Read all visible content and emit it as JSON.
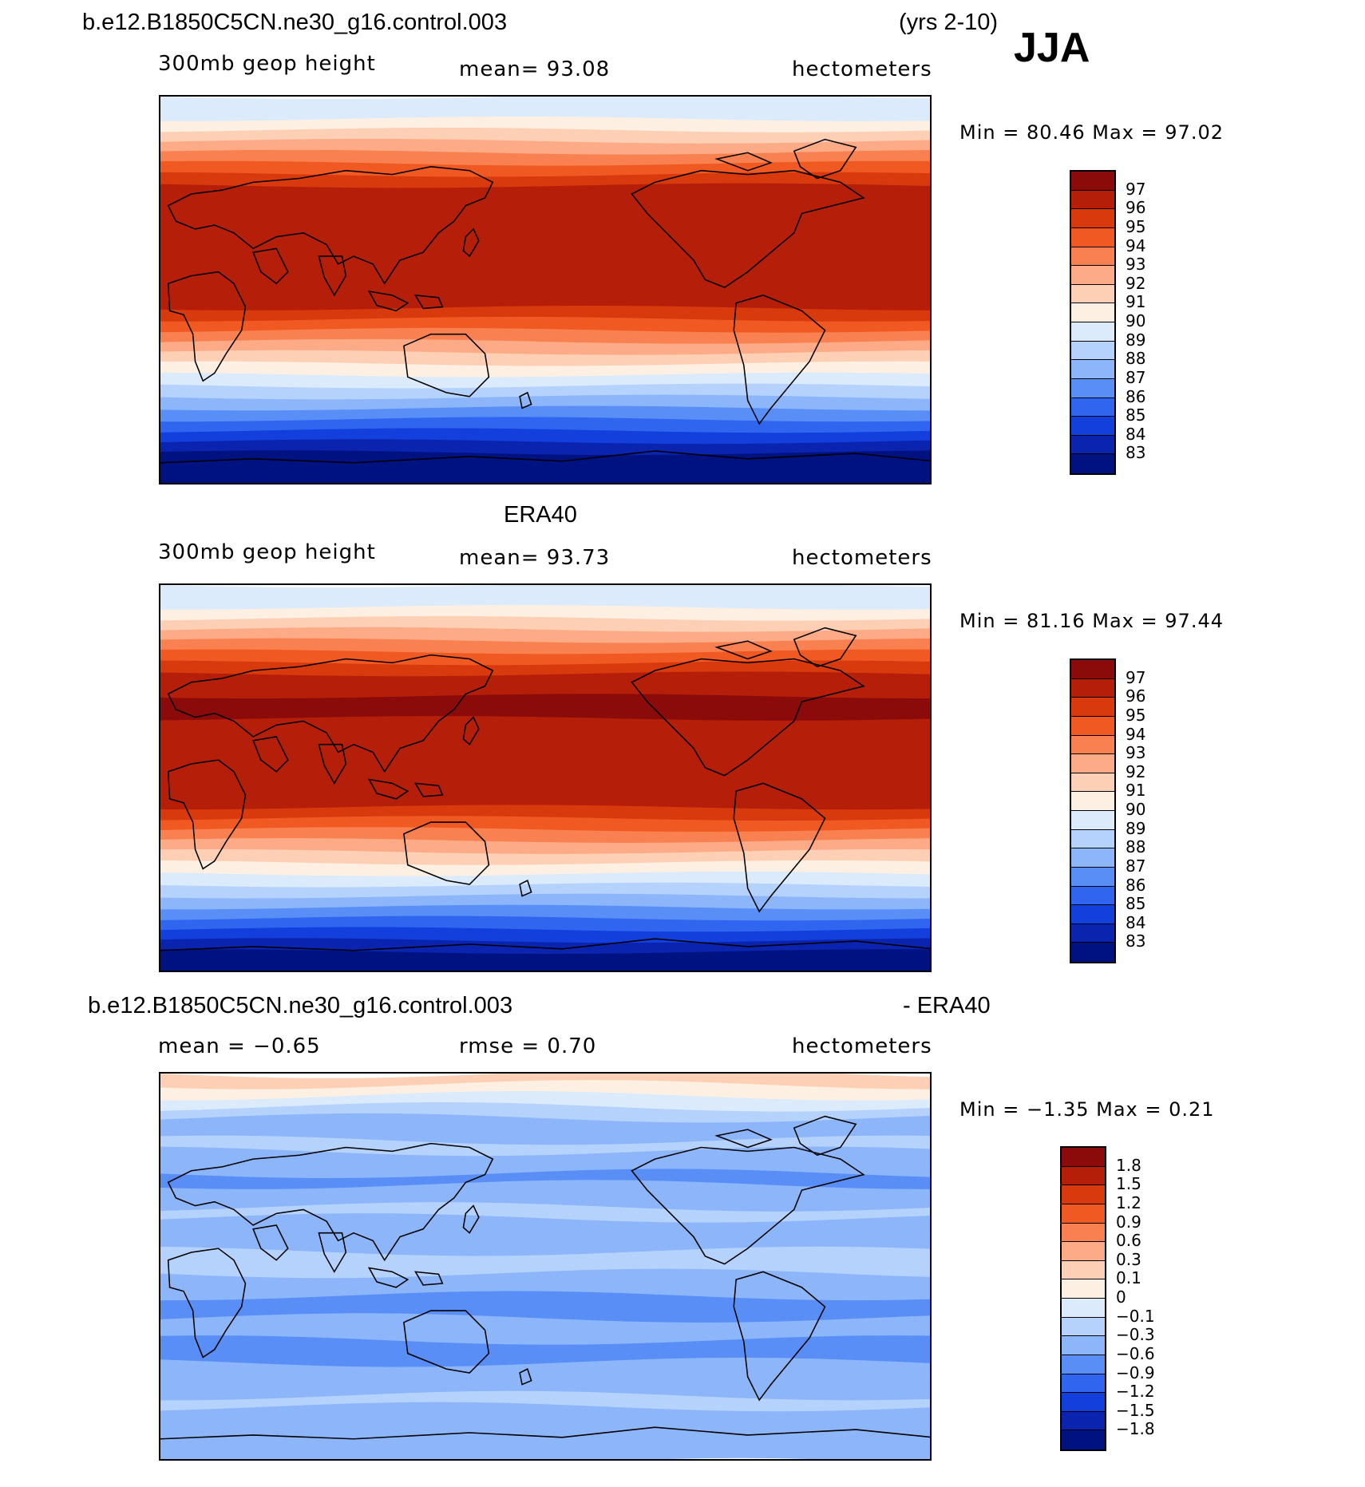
{
  "header": {
    "case_name": "b.e12.B1850C5CN.ne30_g16.control.003",
    "years": "(yrs 2-10)",
    "season": "JJA"
  },
  "panels": [
    {
      "id": "model",
      "title": "",
      "field_label": "300mb geop height",
      "stat_label": "mean=  93.08",
      "units": "hectometers",
      "minmax": "Min =   80.46  Max =   97.02",
      "colorbar_levels": [
        "97",
        "96",
        "95",
        "94",
        "93",
        "92",
        "91",
        "90",
        "89",
        "88",
        "87",
        "86",
        "85",
        "84",
        "83"
      ]
    },
    {
      "id": "obs",
      "title": "ERA40",
      "field_label": "300mb geop height",
      "stat_label": "mean=  93.73",
      "units": "hectometers",
      "minmax": "Min =   81.16  Max =   97.44",
      "colorbar_levels": [
        "97",
        "96",
        "95",
        "94",
        "93",
        "92",
        "91",
        "90",
        "89",
        "88",
        "87",
        "86",
        "85",
        "84",
        "83"
      ]
    },
    {
      "id": "diff",
      "title_left": "b.e12.B1850C5CN.ne30_g16.control.003",
      "title_right": "- ERA40",
      "field_label": "mean =  −0.65",
      "stat_label": "rmse =   0.70",
      "units": "hectometers",
      "minmax": "Min =  −1.35  Max =    0.21",
      "colorbar_levels": [
        "1.8",
        "1.5",
        "1.2",
        "0.9",
        "0.6",
        "0.3",
        "0.1",
        "0",
        "−0.1",
        "−0.3",
        "−0.6",
        "−0.9",
        "−1.2",
        "−1.5",
        "−1.8"
      ]
    }
  ],
  "colors": {
    "palette": [
      "#8b0a0a",
      "#b51f0a",
      "#d83a0e",
      "#f05a22",
      "#f98050",
      "#fcab86",
      "#fdd0b6",
      "#fdf0e2",
      "#dcebfb",
      "#b4d2fb",
      "#8cb5fa",
      "#5a8ef7",
      "#3065f0",
      "#133fdc",
      "#0a24b0",
      "#001180"
    ]
  }
}
